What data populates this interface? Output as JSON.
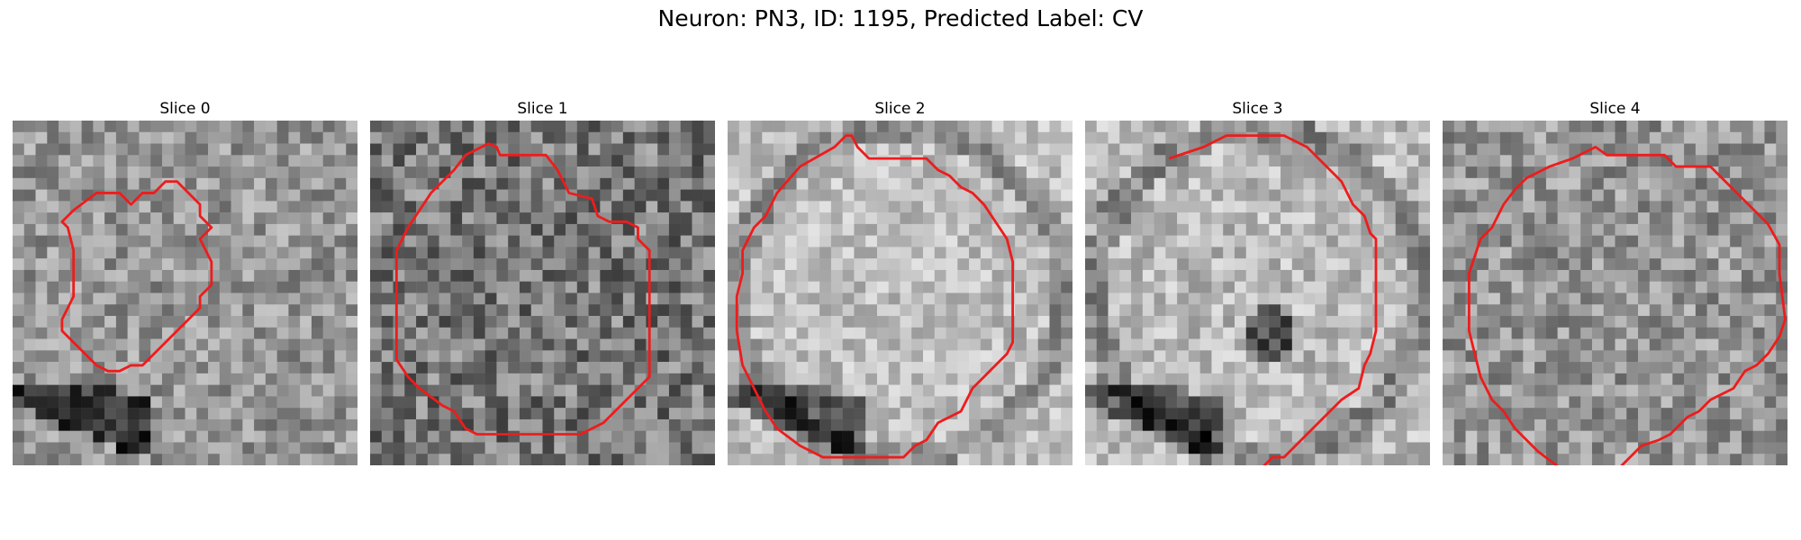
{
  "figure": {
    "title": "Neuron: PN3, ID: 1195, Predicted Label: CV"
  },
  "panels": [
    {
      "title": "Slice 0",
      "seed": 11,
      "base": 150,
      "contrast": 48,
      "outline_color": "#ee1c1c"
    },
    {
      "title": "Slice 1",
      "seed": 23,
      "base": 120,
      "contrast": 60,
      "outline_color": "#ee1c1c"
    },
    {
      "title": "Slice 2",
      "seed": 37,
      "base": 190,
      "contrast": 38,
      "outline_color": "#ee1c1c"
    },
    {
      "title": "Slice 3",
      "seed": 41,
      "base": 185,
      "contrast": 42,
      "outline_color": "#ee1c1c"
    },
    {
      "title": "Slice 4",
      "seed": 59,
      "base": 150,
      "contrast": 50,
      "outline_color": "#ee1c1c"
    }
  ],
  "grid_cells": 30
}
